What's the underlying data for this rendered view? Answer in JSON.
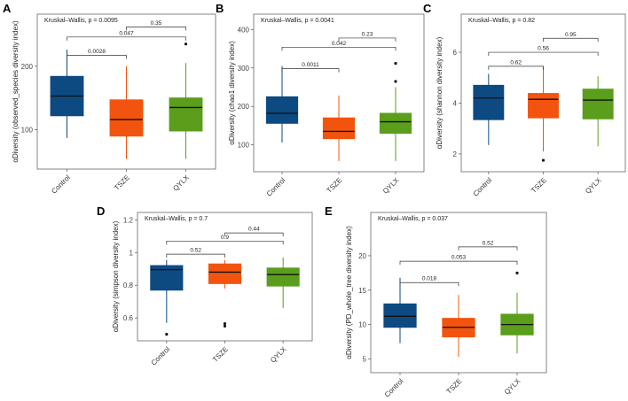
{
  "figure": {
    "colors": {
      "Control": "#0d4a82",
      "TSZE": "#f2540f",
      "QYLX": "#5a9e1c"
    },
    "categories": [
      "Control",
      "TSZE",
      "QYLX"
    ]
  },
  "chart_data": [
    {
      "type": "boxplot",
      "panel": "A",
      "title": "Kruskal–Wallis, p = 0.0095",
      "ylabel": "αDiversity (observed_species diversity index)",
      "ylim": [
        38,
        282
      ],
      "yticks": [
        100,
        200
      ],
      "categories": [
        "Control",
        "TSZE",
        "QYLX"
      ],
      "boxes": [
        {
          "group": "Control",
          "whisker_low": 87,
          "q1": 122,
          "median": 153,
          "q3": 184,
          "whisker_high": 226,
          "outliers": []
        },
        {
          "group": "TSZE",
          "whisker_low": 54,
          "q1": 90,
          "median": 116,
          "q3": 147,
          "whisker_high": 200,
          "outliers": []
        },
        {
          "group": "QYLX",
          "whisker_low": 54,
          "q1": 98,
          "median": 135,
          "q3": 150,
          "whisker_high": 205,
          "outliers": [
            235
          ]
        }
      ],
      "comparisons": [
        {
          "from": 0,
          "to": 1,
          "p": "0.0028",
          "y": 217
        },
        {
          "from": 0,
          "to": 2,
          "p": "0.047",
          "y": 246
        },
        {
          "from": 1,
          "to": 2,
          "p": "0.35",
          "y": 262
        }
      ]
    },
    {
      "type": "boxplot",
      "panel": "B",
      "title": "Kruskal–Wallis, p = 0.0041",
      "ylabel": "αDiversity (chao1 diversity index)",
      "ylim": [
        30,
        440
      ],
      "yticks": [
        100,
        200,
        300,
        400
      ],
      "categories": [
        "Control",
        "TSZE",
        "QYLX"
      ],
      "boxes": [
        {
          "group": "Control",
          "whisker_low": 106,
          "q1": 156,
          "median": 182,
          "q3": 225,
          "whisker_high": 305,
          "outliers": []
        },
        {
          "group": "TSZE",
          "whisker_low": 58,
          "q1": 116,
          "median": 135,
          "q3": 170,
          "whisker_high": 228,
          "outliers": []
        },
        {
          "group": "QYLX",
          "whisker_low": 58,
          "q1": 130,
          "median": 160,
          "q3": 182,
          "whisker_high": 250,
          "outliers": [
            265,
            312
          ]
        }
      ],
      "comparisons": [
        {
          "from": 0,
          "to": 1,
          "p": "0.0011",
          "y": 298
        },
        {
          "from": 0,
          "to": 2,
          "p": "0.042",
          "y": 354
        },
        {
          "from": 1,
          "to": 2,
          "p": "0.23",
          "y": 378
        }
      ]
    },
    {
      "type": "boxplot",
      "panel": "C",
      "title": "Kruskal–Wallis, p = 0.82",
      "ylabel": "αDiversity (shannon diversity index)",
      "ylim": [
        1.3,
        7.5
      ],
      "yticks": [
        2,
        4,
        6
      ],
      "categories": [
        "Control",
        "TSZE",
        "QYLX"
      ],
      "boxes": [
        {
          "group": "Control",
          "whisker_low": 2.35,
          "q1": 3.35,
          "median": 4.2,
          "q3": 4.7,
          "whisker_high": 5.15,
          "outliers": []
        },
        {
          "group": "TSZE",
          "whisker_low": 2.1,
          "q1": 3.42,
          "median": 4.15,
          "q3": 4.38,
          "whisker_high": 5.45,
          "outliers": [
            1.75
          ]
        },
        {
          "group": "QYLX",
          "whisker_low": 2.3,
          "q1": 3.38,
          "median": 4.12,
          "q3": 4.55,
          "whisker_high": 5.05,
          "outliers": []
        }
      ],
      "comparisons": [
        {
          "from": 0,
          "to": 1,
          "p": "0.62",
          "y": 5.45
        },
        {
          "from": 0,
          "to": 2,
          "p": "0.56",
          "y": 6.0
        },
        {
          "from": 1,
          "to": 2,
          "p": "0.95",
          "y": 6.55
        }
      ]
    },
    {
      "type": "boxplot",
      "panel": "D",
      "title": "Kruskal–Wallis, p = 0.7",
      "ylabel": "αDiversity (simpson diversity index)",
      "ylim": [
        0.46,
        1.245
      ],
      "yticks": [
        0.6,
        0.8,
        1.0,
        1.2
      ],
      "categories": [
        "Control",
        "TSZE",
        "QYLX"
      ],
      "boxes": [
        {
          "group": "Control",
          "whisker_low": 0.57,
          "q1": 0.77,
          "median": 0.895,
          "q3": 0.92,
          "whisker_high": 0.955,
          "outliers": [
            0.5
          ]
        },
        {
          "group": "TSZE",
          "whisker_low": 0.78,
          "q1": 0.81,
          "median": 0.88,
          "q3": 0.93,
          "whisker_high": 0.955,
          "outliers": [
            0.565,
            0.55
          ]
        },
        {
          "group": "QYLX",
          "whisker_low": 0.66,
          "q1": 0.795,
          "median": 0.865,
          "q3": 0.905,
          "whisker_high": 0.97,
          "outliers": []
        }
      ],
      "comparisons": [
        {
          "from": 0,
          "to": 1,
          "p": "0.52",
          "y": 0.99
        },
        {
          "from": 0,
          "to": 2,
          "p": "0.9",
          "y": 1.07
        },
        {
          "from": 1,
          "to": 2,
          "p": "0.44",
          "y": 1.12
        }
      ]
    },
    {
      "type": "boxplot",
      "panel": "E",
      "title": "Kruskal–Wallis, p = 0.037",
      "ylabel": "αDiversity (PD_whole_tree diversity index)",
      "ylim": [
        3.0,
        26.3
      ],
      "yticks": [
        5,
        10,
        15,
        20
      ],
      "categories": [
        "Control",
        "TSZE",
        "QYLX"
      ],
      "boxes": [
        {
          "group": "Control",
          "whisker_low": 7.3,
          "q1": 9.6,
          "median": 11.2,
          "q3": 13.0,
          "whisker_high": 16.8,
          "outliers": []
        },
        {
          "group": "TSZE",
          "whisker_low": 5.3,
          "q1": 8.2,
          "median": 9.6,
          "q3": 10.9,
          "whisker_high": 14.3,
          "outliers": []
        },
        {
          "group": "QYLX",
          "whisker_low": 5.8,
          "q1": 8.5,
          "median": 10.0,
          "q3": 11.5,
          "whisker_high": 14.6,
          "outliers": [
            17.5
          ]
        }
      ],
      "comparisons": [
        {
          "from": 0,
          "to": 1,
          "p": "0.018",
          "y": 16.1
        },
        {
          "from": 0,
          "to": 2,
          "p": "0.053",
          "y": 19.2
        },
        {
          "from": 1,
          "to": 2,
          "p": "0.52",
          "y": 21.3
        }
      ]
    }
  ]
}
